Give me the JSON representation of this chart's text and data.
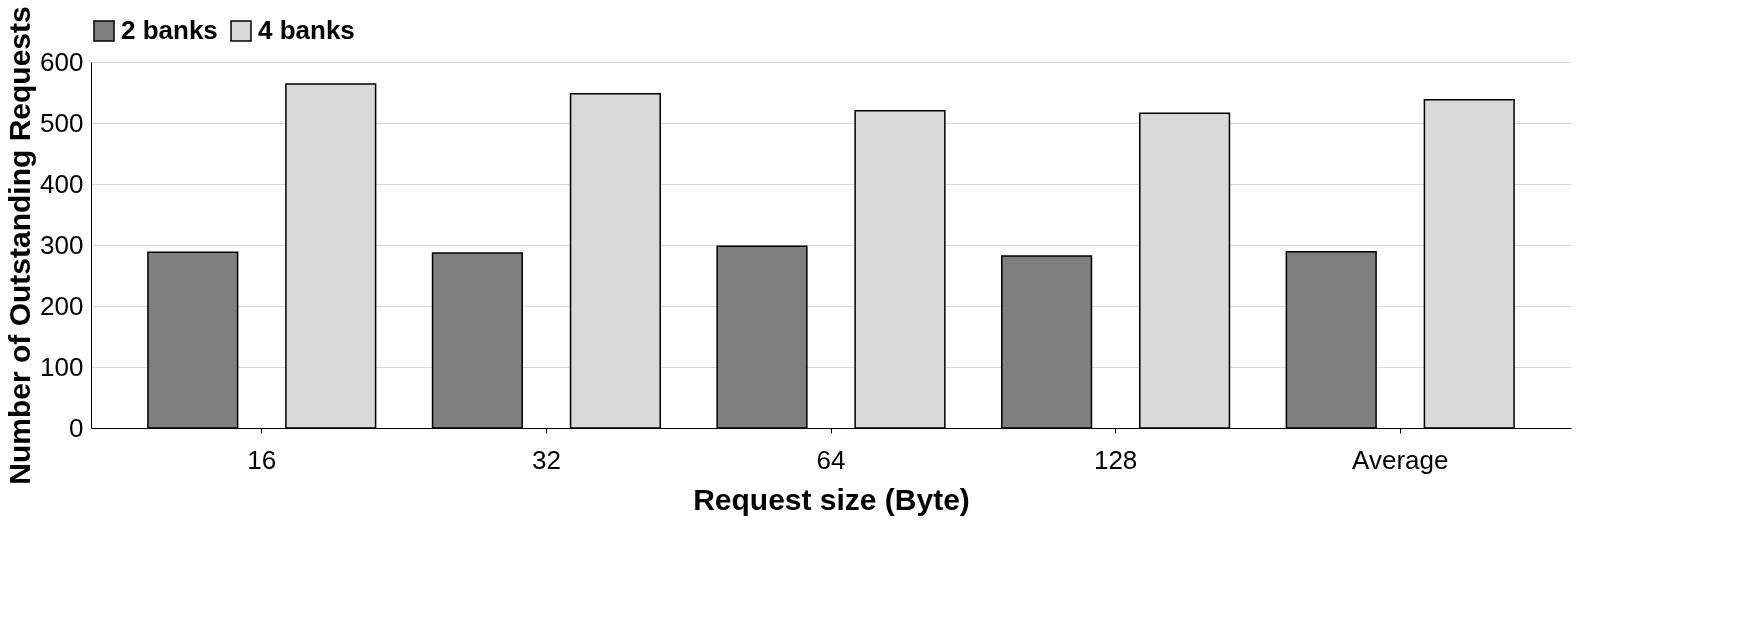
{
  "chart_data": {
    "type": "bar",
    "xlabel": "Request size (Byte)",
    "ylabel": "Number of Outstanding Requests",
    "categories": [
      "16",
      "32",
      "64",
      "128",
      "Average"
    ],
    "series": [
      {
        "name": "2 banks",
        "color": "#7f7f7f",
        "values": [
          288,
          287,
          298,
          282,
          289
        ]
      },
      {
        "name": "4 banks",
        "color": "#d9d9d9",
        "values": [
          564,
          548,
          520,
          516,
          538
        ]
      }
    ],
    "ylim": [
      0,
      600
    ],
    "yticks": [
      0,
      100,
      200,
      300,
      400,
      500,
      600
    ],
    "grid": "y",
    "legend": "top"
  }
}
